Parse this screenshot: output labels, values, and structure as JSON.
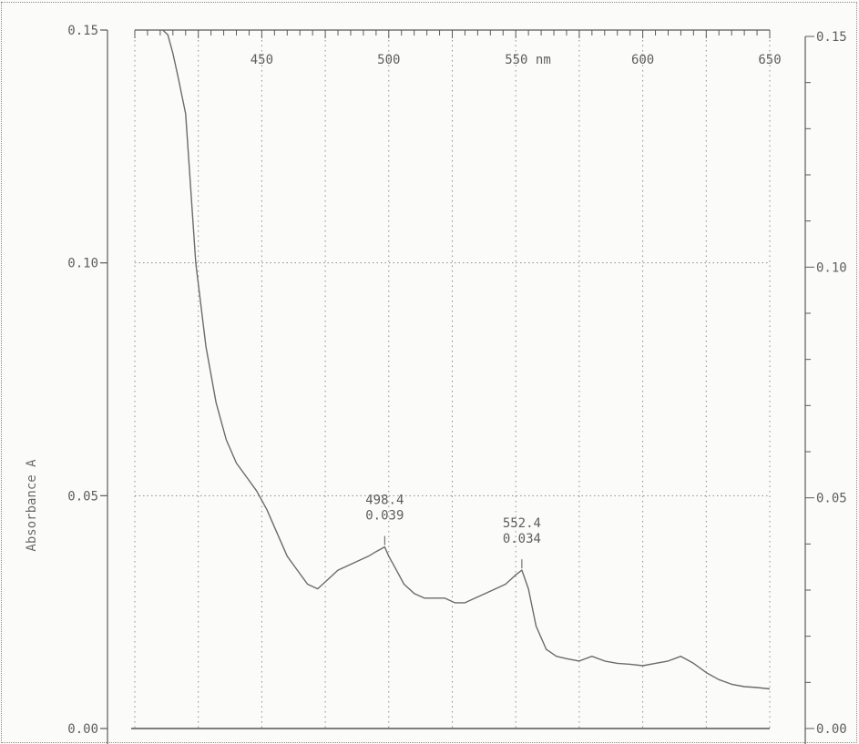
{
  "chart_data": {
    "type": "line",
    "title": "",
    "xlabel": "nm",
    "ylabel": "Absorbance A",
    "xlim": [
      400,
      650
    ],
    "ylim": [
      0.0,
      0.15
    ],
    "x_ticks": [
      450,
      500,
      550,
      600,
      650
    ],
    "x_tick_labels": [
      "450",
      "500",
      "550 nm",
      "600",
      "650"
    ],
    "y_ticks": [
      0.0,
      0.05,
      0.1,
      0.15
    ],
    "y_tick_labels_left": [
      "0.00",
      "0.05",
      "0.10",
      "0.15"
    ],
    "y_tick_labels_right": [
      "0.00",
      "0.05",
      "0.10",
      "0.15"
    ],
    "grid": true,
    "line_color": "#6b6b6b",
    "grid_color": "#8c8c8c",
    "series": [
      {
        "x": [
          411,
          413,
          415,
          417,
          420,
          424,
          428,
          432,
          436,
          440,
          444,
          448,
          452,
          456,
          460,
          464,
          468,
          472,
          476,
          480,
          484,
          488,
          492,
          495,
          498.4,
          500,
          503,
          506,
          510,
          514,
          518,
          522,
          526,
          530,
          534,
          538,
          542,
          546,
          550,
          552.4,
          555,
          558,
          562,
          566,
          570,
          575,
          580,
          585,
          590,
          595,
          600,
          605,
          610,
          615,
          620,
          625,
          630,
          635,
          640,
          645,
          650
        ],
        "y": [
          0.15,
          0.149,
          0.145,
          0.14,
          0.132,
          0.1,
          0.082,
          0.07,
          0.062,
          0.057,
          0.054,
          0.051,
          0.047,
          0.042,
          0.037,
          0.034,
          0.031,
          0.03,
          0.032,
          0.034,
          0.035,
          0.036,
          0.037,
          0.038,
          0.039,
          0.037,
          0.034,
          0.031,
          0.029,
          0.028,
          0.028,
          0.028,
          0.027,
          0.027,
          0.028,
          0.029,
          0.03,
          0.031,
          0.033,
          0.034,
          0.03,
          0.022,
          0.017,
          0.0155,
          0.015,
          0.0145,
          0.0155,
          0.0145,
          0.014,
          0.0138,
          0.0135,
          0.014,
          0.0145,
          0.0155,
          0.014,
          0.012,
          0.0105,
          0.0095,
          0.009,
          0.0088,
          0.0085
        ]
      }
    ],
    "annotations": [
      {
        "x": 498.4,
        "y": 0.039,
        "label_line1": "498.4",
        "label_line2": "0.039"
      },
      {
        "x": 552.4,
        "y": 0.034,
        "label_line1": "552.4",
        "label_line2": "0.034"
      }
    ]
  }
}
